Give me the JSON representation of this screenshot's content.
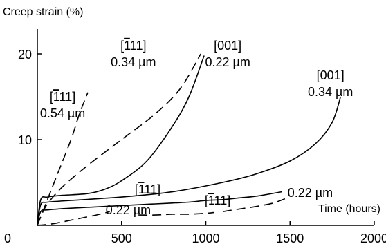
{
  "chart_data": {
    "type": "line",
    "ylabel": "Creep strain (%)",
    "xlabel": "Time (hours)",
    "xlim": [
      0,
      2000
    ],
    "ylim": [
      0,
      20
    ],
    "xticks": [
      "0",
      "500",
      "1000",
      "1500",
      "2000"
    ],
    "yticks": [
      "10",
      "20"
    ],
    "grid": false,
    "series": [
      {
        "name": "[111] 0.54 µm",
        "dash": "dashed",
        "x": [
          0,
          30,
          80,
          140,
          200,
          250,
          300
        ],
        "y": [
          0,
          1.5,
          4,
          7,
          10,
          13,
          15.5
        ],
        "label": {
          "line1": "[111]",
          "bar": "1",
          "line2": "0.54 µm",
          "anchor": [
            150,
            14.5
          ]
        }
      },
      {
        "name": "[111] 0.34 µm",
        "dash": "dashed",
        "x": [
          0,
          20,
          60,
          150,
          300,
          500,
          700,
          850,
          970
        ],
        "y": [
          0,
          1.0,
          2.5,
          4.5,
          7,
          10,
          13,
          16,
          20
        ],
        "label": {
          "line1": "[111]",
          "bar": "1",
          "line2": "0.34 µm",
          "anchor": [
            570,
            20.5
          ]
        }
      },
      {
        "name": "[001] 0.22 µm",
        "dash": "solid",
        "x": [
          0,
          20,
          60,
          150,
          300,
          400,
          500,
          650,
          800,
          900,
          990
        ],
        "y": [
          0,
          3.0,
          3.3,
          3.5,
          3.7,
          4.2,
          5.2,
          7.5,
          11.5,
          15,
          19.8
        ],
        "label": {
          "line1": "[001]",
          "bar": "",
          "line2": "0.22 µm",
          "anchor": [
            1130,
            20.5
          ]
        }
      },
      {
        "name": "[001] 0.34 µm",
        "dash": "solid",
        "x": [
          0,
          20,
          60,
          200,
          500,
          800,
          1100,
          1300,
          1500,
          1650,
          1750,
          1800
        ],
        "y": [
          0,
          2.4,
          2.7,
          2.9,
          3.3,
          3.9,
          5.0,
          6.0,
          7.5,
          9.5,
          12,
          15
        ],
        "label": {
          "line1": "[001]",
          "bar": "",
          "line2": "0.34 µm",
          "anchor": [
            1740,
            17.0
          ]
        }
      },
      {
        "name": "[111] 0.22 µm (solid)",
        "dash": "solid",
        "x": [
          0,
          20,
          60,
          200,
          400,
          600,
          700,
          800,
          900,
          1000,
          1100,
          1200,
          1300,
          1450
        ],
        "y": [
          0,
          1.6,
          1.8,
          2.0,
          2.2,
          2.4,
          2.5,
          2.6,
          2.7,
          2.9,
          3.0,
          3.2,
          3.4,
          3.9
        ],
        "label": {
          "line1": "[111]",
          "bar": "1",
          "line2": "",
          "anchor": [
            655,
            3.7
          ]
        }
      },
      {
        "name": "[111] 0.22 µm (dashed, lower)",
        "dash": "dashed",
        "x": [
          0,
          80,
          150,
          250,
          350,
          430
        ],
        "y": [
          0,
          0.15,
          0.4,
          0.8,
          1.2,
          1.6
        ],
        "label": {
          "line1": "",
          "bar": "",
          "line2": "0.22 µm",
          "anchor": [
            540,
            1.3
          ]
        }
      },
      {
        "name": "[111] 0.22 µm (dashed, right)",
        "dash": "dashed",
        "x": [
          1100,
          1200,
          1300,
          1400,
          1470
        ],
        "y": [
          1.6,
          1.9,
          2.2,
          2.6,
          3.1
        ],
        "label": {
          "line1": "",
          "bar": "",
          "line2": "0.22 µm",
          "anchor": [
            1620,
            3.3
          ]
        }
      },
      {
        "name": "[111] (dashed, lower right)",
        "dash": "dashed",
        "x": [
          600,
          700,
          800,
          900,
          1000,
          1050
        ],
        "y": [
          1.2,
          1.2,
          1.3,
          1.3,
          1.4,
          1.5
        ],
        "label": {
          "line1": "[111]",
          "bar": "1",
          "line2": "",
          "anchor": [
            1070,
            2.4
          ]
        }
      }
    ]
  }
}
